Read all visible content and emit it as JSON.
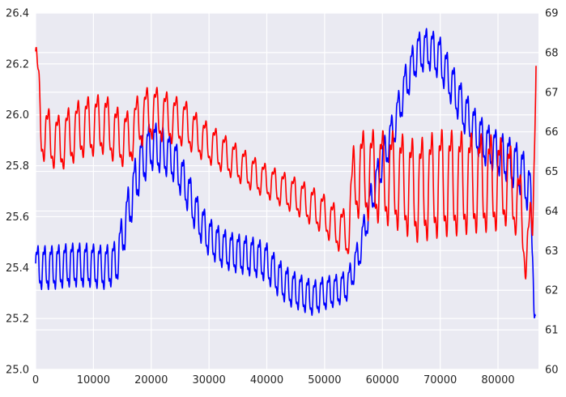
{
  "chart_data": {
    "type": "line",
    "title": "",
    "xlabel": "",
    "ylabel_left": "",
    "ylabel_right": "",
    "xlim": [
      0,
      87000
    ],
    "ylim_left": [
      25.0,
      26.4
    ],
    "ylim_right": [
      60,
      69
    ],
    "grid": true,
    "legend": "none",
    "x_ticks": [
      "0",
      "10000",
      "20000",
      "30000",
      "40000",
      "50000",
      "60000",
      "70000",
      "80000"
    ],
    "y_ticks_left": [
      "25.0",
      "25.2",
      "25.4",
      "25.6",
      "25.8",
      "26.0",
      "26.2",
      "26.4"
    ],
    "y_ticks_right": [
      "60",
      "61",
      "62",
      "63",
      "64",
      "65",
      "66",
      "67",
      "68",
      "69"
    ],
    "series": [
      {
        "axis": "left",
        "color": "#0000ff",
        "oscillation_period": 1200,
        "baseline": [
          [
            0,
            25.4
          ],
          [
            3000,
            25.4
          ],
          [
            6000,
            25.41
          ],
          [
            9000,
            25.41
          ],
          [
            12000,
            25.4
          ],
          [
            14000,
            25.42
          ],
          [
            16000,
            25.62
          ],
          [
            18000,
            25.8
          ],
          [
            20000,
            25.88
          ],
          [
            22000,
            25.86
          ],
          [
            24000,
            25.82
          ],
          [
            26000,
            25.72
          ],
          [
            28000,
            25.6
          ],
          [
            30000,
            25.52
          ],
          [
            32000,
            25.48
          ],
          [
            34000,
            25.46
          ],
          [
            36000,
            25.45
          ],
          [
            38000,
            25.44
          ],
          [
            40000,
            25.42
          ],
          [
            42000,
            25.36
          ],
          [
            44000,
            25.32
          ],
          [
            46000,
            25.3
          ],
          [
            48000,
            25.28
          ],
          [
            50000,
            25.3
          ],
          [
            52000,
            25.31
          ],
          [
            54000,
            25.33
          ],
          [
            56000,
            25.46
          ],
          [
            58000,
            25.66
          ],
          [
            60000,
            25.82
          ],
          [
            62000,
            25.95
          ],
          [
            64000,
            26.12
          ],
          [
            66000,
            26.24
          ],
          [
            68000,
            26.26
          ],
          [
            70000,
            26.22
          ],
          [
            72000,
            26.12
          ],
          [
            74000,
            26.02
          ],
          [
            76000,
            25.94
          ],
          [
            78000,
            25.88
          ],
          [
            80000,
            25.85
          ],
          [
            82000,
            25.82
          ],
          [
            84000,
            25.78
          ],
          [
            85500,
            25.7
          ],
          [
            86000,
            25.5
          ],
          [
            86500,
            25.12
          ]
        ],
        "amplitude": [
          [
            0,
            0.1
          ],
          [
            10000,
            0.1
          ],
          [
            14000,
            0.1
          ],
          [
            18000,
            0.12
          ],
          [
            24000,
            0.1
          ],
          [
            30000,
            0.09
          ],
          [
            40000,
            0.09
          ],
          [
            48000,
            0.08
          ],
          [
            54000,
            0.07
          ],
          [
            58000,
            0.08
          ],
          [
            64000,
            0.09
          ],
          [
            70000,
            0.1
          ],
          [
            80000,
            0.1
          ],
          [
            86000,
            0.12
          ],
          [
            86500,
            0.12
          ]
        ]
      },
      {
        "axis": "right",
        "color": "#ff0000",
        "oscillation_period": 1700,
        "baseline": [
          [
            0,
            67.9
          ],
          [
            1000,
            66.0
          ],
          [
            4000,
            65.7
          ],
          [
            8000,
            66.1
          ],
          [
            12000,
            66.2
          ],
          [
            14000,
            65.9
          ],
          [
            16000,
            65.8
          ],
          [
            18000,
            66.3
          ],
          [
            20000,
            66.5
          ],
          [
            22000,
            66.4
          ],
          [
            24000,
            66.3
          ],
          [
            26000,
            66.2
          ],
          [
            28000,
            65.9
          ],
          [
            30000,
            65.7
          ],
          [
            34000,
            65.3
          ],
          [
            38000,
            64.9
          ],
          [
            42000,
            64.6
          ],
          [
            46000,
            64.3
          ],
          [
            50000,
            63.9
          ],
          [
            52000,
            63.6
          ],
          [
            54000,
            63.4
          ],
          [
            55000,
            64.8
          ],
          [
            56000,
            64.9
          ],
          [
            58000,
            64.9
          ],
          [
            62000,
            64.8
          ],
          [
            66000,
            64.5
          ],
          [
            70000,
            64.7
          ],
          [
            74000,
            64.7
          ],
          [
            78000,
            64.7
          ],
          [
            82000,
            64.7
          ],
          [
            84000,
            64.0
          ],
          [
            85000,
            62.8
          ],
          [
            86000,
            63.9
          ],
          [
            86600,
            68.2
          ]
        ],
        "amplitude": [
          [
            0,
            0.8
          ],
          [
            10000,
            0.9
          ],
          [
            20000,
            0.8
          ],
          [
            30000,
            0.6
          ],
          [
            40000,
            0.5
          ],
          [
            50000,
            0.6
          ],
          [
            54000,
            0.7
          ],
          [
            56000,
            1.3
          ],
          [
            70000,
            1.6
          ],
          [
            80000,
            1.4
          ],
          [
            84000,
            1.0
          ],
          [
            86600,
            0.8
          ]
        ]
      }
    ]
  }
}
